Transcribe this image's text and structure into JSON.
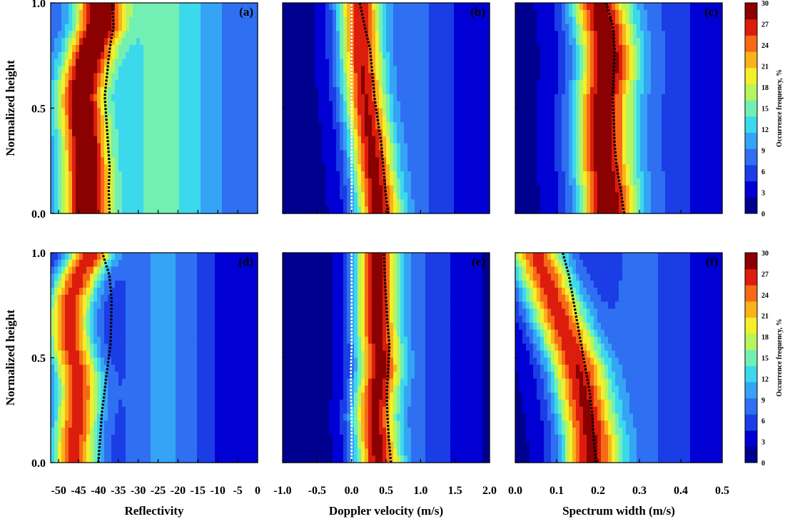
{
  "chart_data": {
    "type": "heatmap",
    "ylabel": "Normalized height",
    "yticks": [
      "0.0",
      "0.5",
      "1.0"
    ],
    "colorbar": {
      "label": "Occurrence frequency, %",
      "ticks": [
        "0",
        "3",
        "6",
        "9",
        "12",
        "15",
        "18",
        "21",
        "24",
        "27",
        "30"
      ],
      "range": [
        0,
        30
      ],
      "colors": [
        "#00008f",
        "#0000d4",
        "#1a3de6",
        "#2f6ff2",
        "#35a4f5",
        "#3cd8ec",
        "#72f0b4",
        "#b7f55d",
        "#f4ef2a",
        "#fbb21c",
        "#f66a15",
        "#dc1c0d",
        "#8b0000"
      ]
    },
    "columns": [
      {
        "xlabel": "Reflectivity",
        "xticks": [
          "-50",
          "-45",
          "-40",
          "-35",
          "-30",
          "-25",
          "-20",
          "-15",
          "-10",
          "-5",
          "0"
        ],
        "xrange": [
          -52,
          0
        ]
      },
      {
        "xlabel": "Doppler velocity (m/s)",
        "xticks": [
          "-1.0",
          "-0.5",
          "0.0",
          "0.5",
          "1.0",
          "1.5",
          "2.0"
        ],
        "xrange": [
          -1.0,
          2.0
        ]
      },
      {
        "xlabel": "Spectrum width (m/s)",
        "xticks": [
          "0.0",
          "0.1",
          "0.2",
          "0.3",
          "0.4",
          "0.5"
        ],
        "xrange": [
          0.0,
          0.5
        ]
      }
    ],
    "panels": [
      {
        "label": "(a)",
        "col": 0,
        "mean_x": [
          -37.2,
          -37.4,
          -37.2,
          -37.6,
          -38.0,
          -38.4,
          -37.8,
          -37.2,
          -36.2,
          -36.6
        ],
        "ridge": [
          {
            "w": [
              15,
              8,
              5,
              3,
              1
            ]
          },
          {
            "w": [
              3.5,
              2.5,
              1.8,
              1.1,
              0.4
            ]
          }
        ],
        "peak": [
          -43,
          -43,
          -43.2,
          -43.5,
          -44,
          -44.5,
          -43.5,
          -42,
          -40,
          -39.5
        ],
        "bg": 11
      },
      {
        "label": "(b)",
        "col": 1,
        "mean_x": [
          0.53,
          0.49,
          0.46,
          0.43,
          0.38,
          0.33,
          0.3,
          0.27,
          0.19,
          0.12
        ],
        "zero_x": [
          0,
          0,
          0,
          0,
          0,
          0,
          0,
          0,
          0,
          0
        ],
        "peak": [
          0.28,
          0.25,
          0.2,
          0.17,
          0.12,
          0.08,
          0.05,
          0.03,
          0.02,
          0.01
        ],
        "bg": 2
      },
      {
        "label": "(c)",
        "col": 2,
        "mean_x": [
          0.263,
          0.255,
          0.245,
          0.24,
          0.238,
          0.235,
          0.238,
          0.24,
          0.236,
          0.22
        ],
        "peak": [
          0.21,
          0.21,
          0.2,
          0.2,
          0.2,
          0.2,
          0.21,
          0.21,
          0.2,
          0.19
        ],
        "bg": 2
      },
      {
        "label": "(d)",
        "col": 0,
        "mean_x": [
          -40.0,
          -39.6,
          -39.2,
          -38.5,
          -37.8,
          -37.0,
          -36.8,
          -36.7,
          -37.2,
          -39.0
        ],
        "peak": [
          -46,
          -46,
          -45.5,
          -45,
          -45.5,
          -47,
          -47.5,
          -47,
          -45,
          -42
        ],
        "bg": 2
      },
      {
        "label": "(e)",
        "col": 1,
        "mean_x": [
          0.57,
          0.54,
          0.52,
          0.51,
          0.53,
          0.55,
          0.52,
          0.5,
          0.48,
          0.47
        ],
        "zero_x": [
          0,
          0,
          0,
          -0.01,
          -0.01,
          0.0,
          0.0,
          0.0,
          0.0,
          0.0
        ],
        "peak": [
          0.28,
          0.25,
          0.22,
          0.25,
          0.3,
          0.28,
          0.25,
          0.25,
          0.25,
          0.25
        ],
        "bg": 1
      },
      {
        "label": "(f)",
        "col": 2,
        "mean_x": [
          0.195,
          0.19,
          0.186,
          0.18,
          0.17,
          0.16,
          0.15,
          0.14,
          0.13,
          0.115
        ],
        "peak": [
          0.17,
          0.17,
          0.16,
          0.15,
          0.14,
          0.12,
          0.1,
          0.08,
          0.06,
          0.04
        ],
        "bg": 2
      }
    ]
  }
}
